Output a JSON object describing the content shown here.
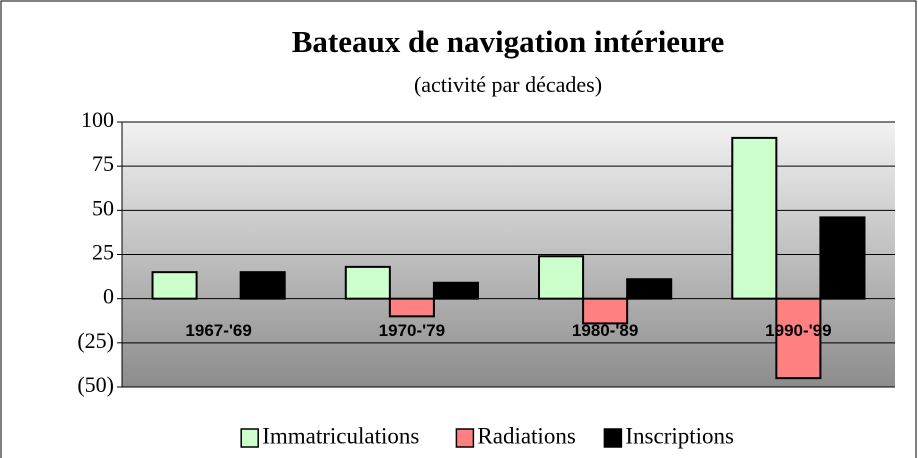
{
  "chart_data": {
    "type": "bar",
    "title": "Bateaux de navigation intérieure",
    "subtitle": "(activité par décades)",
    "categories": [
      "1967-'69",
      "1970-'79",
      "1980-'89",
      "1990-'99"
    ],
    "series": [
      {
        "name": "Immatriculations",
        "color": "#ccffcc",
        "values": [
          15,
          18,
          24,
          91
        ]
      },
      {
        "name": "Radiations",
        "color": "#ff8080",
        "values": [
          0,
          -10,
          -14,
          -45
        ]
      },
      {
        "name": "Inscriptions",
        "color": "#000000",
        "values": [
          15,
          9,
          11,
          46
        ]
      }
    ],
    "ylim": [
      -50,
      100
    ],
    "yticks": [
      {
        "value": -50,
        "label": "(50)"
      },
      {
        "value": -25,
        "label": "(25)"
      },
      0,
      25,
      50,
      75,
      100
    ],
    "grid": true,
    "legend": "bottom"
  }
}
